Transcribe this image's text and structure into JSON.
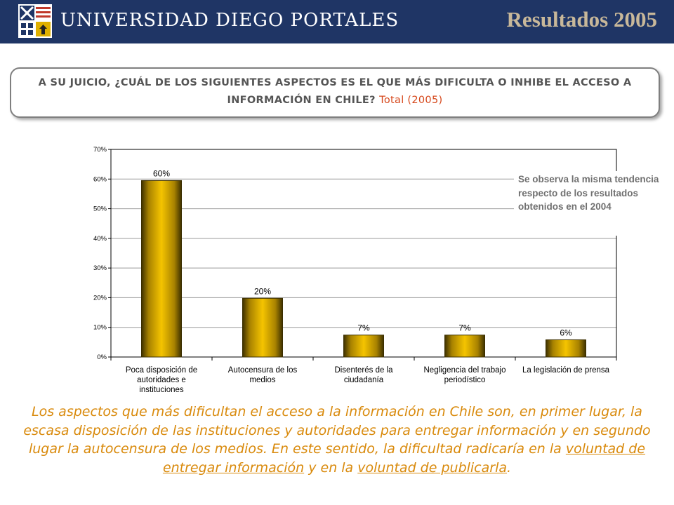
{
  "header": {
    "university": "UNIVERSIDAD DIEGO PORTALES",
    "title": "Resultados 2005",
    "bg_color": "#1f3565"
  },
  "question": {
    "text": "A SU JUICIO, ¿CUÁL DE LOS SIGUIENTES ASPECTOS ES EL QUE MÁS DIFICULTA O INHIBE EL ACCESO A INFORMACIÓN EN CHILE?",
    "suffix": "Total (2005)"
  },
  "chart_data": {
    "type": "bar",
    "categories": [
      [
        "Poca disposición de",
        "autoridades e",
        "instituciones"
      ],
      [
        "Autocensura de los",
        "medios"
      ],
      [
        "Disenterés de la",
        "ciudadanía"
      ],
      [
        "Negligencia del trabajo",
        "periodístico"
      ],
      [
        "La legislación de prensa"
      ]
    ],
    "values": [
      59.5,
      19.8,
      7.4,
      7.4,
      5.8
    ],
    "data_labels": [
      "60%",
      "20%",
      "7%",
      "7%",
      "6%"
    ],
    "ylim": [
      0,
      70
    ],
    "yticks": [
      0,
      10,
      20,
      30,
      40,
      50,
      60,
      70
    ],
    "ytick_labels": [
      "0%",
      "10%",
      "20%",
      "30%",
      "40%",
      "50%",
      "60%",
      "70%"
    ],
    "grid": true,
    "bar_color": "#f5c400",
    "bar_edge_color": "#3a2e00"
  },
  "note": "Se observa la misma tendencia respecto de los resultados obtenidos en el 2004",
  "summary": {
    "part1": "Los aspectos que más dificultan el acceso a la información en Chile son, en primer lugar, la escasa disposición de las instituciones y autoridades para entregar información y en segundo lugar la autocensura de los medios. En este sentido, la dificultad radicaría en la",
    "link1": "voluntad de entregar información",
    "part2": "y en la",
    "link2": "voluntad de publicarla",
    "part3": "."
  }
}
